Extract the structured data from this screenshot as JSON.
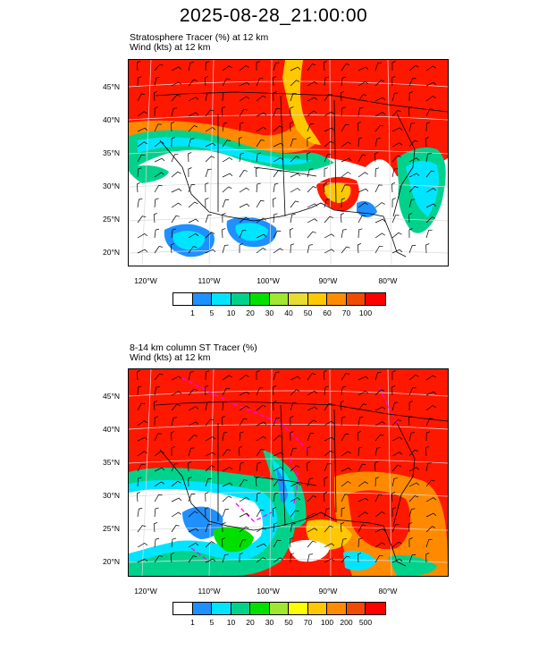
{
  "title": "2025-08-28_21:00:00",
  "panel1": {
    "field_line": "Stratosphere Tracer   (%)     at   12 km",
    "wind_line": "Wind   (kts)     at   12 km",
    "lat_labels": [
      "45°N",
      "40°N",
      "35°N",
      "30°N",
      "25°N",
      "20°N"
    ],
    "lon_labels": [
      "120°W",
      "110°W",
      "100°W",
      "90°W",
      "80°W"
    ],
    "colorbar": {
      "colors": [
        "#ffffff",
        "#1e90ff",
        "#00e5ff",
        "#00d28c",
        "#00e000",
        "#a0e632",
        "#e6dc32",
        "#ffc800",
        "#ff8c00",
        "#f04b00",
        "#ff0000"
      ],
      "labels": [
        "1",
        "5",
        "10",
        "20",
        "30",
        "40",
        "50",
        "60",
        "70",
        "100"
      ]
    }
  },
  "panel2": {
    "field_line": "8-14 km column ST Tracer   (%)",
    "wind_line": "Wind   (kts)     at   12 km",
    "lat_labels": [
      "45°N",
      "40°N",
      "35°N",
      "30°N",
      "25°N",
      "20°N"
    ],
    "lon_labels": [
      "120°W",
      "110°W",
      "100°W",
      "90°W",
      "80°W"
    ],
    "colorbar": {
      "colors": [
        "#ffffff",
        "#1e90ff",
        "#00e5ff",
        "#00d28c",
        "#00e000",
        "#a0e632",
        "#ffff00",
        "#ffc800",
        "#ff8c00",
        "#f04b00",
        "#ff0000"
      ],
      "labels": [
        "1",
        "5",
        "10",
        "20",
        "30",
        "50",
        "70",
        "100",
        "200",
        "500"
      ]
    }
  }
}
